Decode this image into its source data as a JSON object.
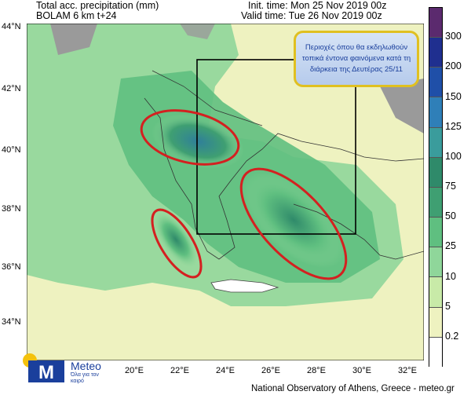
{
  "header": {
    "left_line1": "Total acc. precipitation (mm)",
    "left_line2": "BOLAM 6 km t+24",
    "right_line1": "Init. time: Mon 25 Nov 2019 00z",
    "right_line2": "Valid time: Tue 26 Nov 2019 00z"
  },
  "lat_labels": [
    "44°N",
    "42°N",
    "40°N",
    "38°N",
    "36°N",
    "34°N"
  ],
  "lon_labels": [
    "20°E",
    "22°E",
    "24°E",
    "26°E",
    "28°E",
    "30°E",
    "32°E"
  ],
  "legend": {
    "labels": [
      "300",
      "200",
      "150",
      "125",
      "100",
      "75",
      "50",
      "25",
      "10",
      "5",
      "0.2"
    ],
    "colors": [
      "#5b2a6e",
      "#1f2f8f",
      "#1f4fa8",
      "#2f7fb8",
      "#3a9c9c",
      "#2f8a6a",
      "#3f9f72",
      "#5fbf80",
      "#8fd69a",
      "#c8eaa8",
      "#eef2c0",
      "#ffffff"
    ]
  },
  "callout": {
    "text": "Περιοχές όπου θα εκδηλωθούν τοπικά έντονα φαινόμενα κατά τη διάρκεια της Δευτέρας 25/11"
  },
  "logo": {
    "brand": "Meteo",
    "tagline": "Όλα για τον καιρό"
  },
  "footer": {
    "credit": "National Observatory of Athens, Greece - meteo.gr"
  },
  "colors": {
    "sea_background": "#eef2c0",
    "land_grey": "#9a9a9a",
    "ellipse_outline": "#d42020",
    "callout_border": "#e0c020"
  }
}
